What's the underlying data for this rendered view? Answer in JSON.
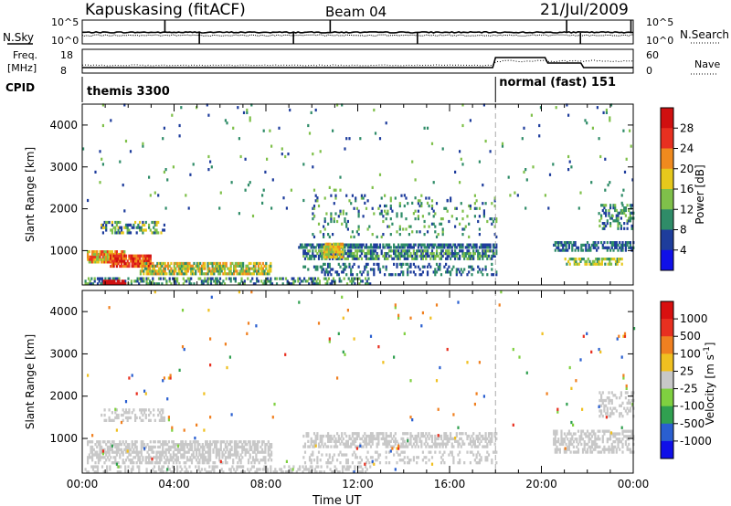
{
  "header": {
    "station": "Kapuskasing (fitACF)",
    "beam": "Beam 04",
    "date": "21/Jul/2009"
  },
  "top_panel": {
    "left_label": "N.Sky",
    "right_label": "N.Search",
    "yticks": [
      "10^5",
      "10^0"
    ]
  },
  "freq_panel": {
    "left_label_1": "Freq.",
    "left_label_2": "[MHz]",
    "right_label": "Nave",
    "left_ticks": [
      "18",
      "8"
    ],
    "right_ticks": [
      "60",
      "0"
    ]
  },
  "cpid": {
    "label": "CPID",
    "programs": [
      "themis 3300",
      "normal (fast) 151"
    ]
  },
  "chart_data": [
    {
      "type": "heatmap",
      "name": "power",
      "xlabel": "",
      "ylabel": "Slant Range [km]",
      "xlim": [
        0,
        24
      ],
      "ylim": [
        180,
        4500
      ],
      "yticks": [
        "1000",
        "2000",
        "3000",
        "4000"
      ],
      "colorbar": {
        "label": "Power [dB]",
        "ticks": [
          "4",
          "8",
          "12",
          "16",
          "20",
          "24",
          "28"
        ],
        "colors": [
          "#1010e8",
          "#1e3d9c",
          "#2f8c68",
          "#7fc04a",
          "#e6c81c",
          "#f08a1e",
          "#e83020",
          "#d01010"
        ]
      },
      "regions": [
        {
          "t0": 0.2,
          "t1": 1.8,
          "r0": 700,
          "r1": 950,
          "density": 0.9,
          "levels": [
            10,
            14,
            18,
            22
          ]
        },
        {
          "t0": 1.2,
          "t1": 3.0,
          "r0": 600,
          "r1": 900,
          "density": 0.9,
          "levels": [
            18,
            22,
            26
          ]
        },
        {
          "t0": 2.5,
          "t1": 8.2,
          "r0": 420,
          "r1": 700,
          "density": 0.75,
          "levels": [
            8,
            12,
            16,
            20
          ]
        },
        {
          "t0": 0.8,
          "t1": 3.6,
          "r0": 1400,
          "r1": 1700,
          "density": 0.45,
          "levels": [
            4,
            8,
            12,
            16
          ]
        },
        {
          "t0": 0.1,
          "t1": 12.5,
          "r0": 180,
          "r1": 330,
          "density": 0.45,
          "levels": [
            4,
            8,
            12
          ]
        },
        {
          "t0": 0.9,
          "t1": 1.9,
          "r0": 180,
          "r1": 300,
          "density": 0.9,
          "levels": [
            26,
            28
          ]
        },
        {
          "t0": 9.4,
          "t1": 18.0,
          "r0": 1050,
          "r1": 1150,
          "density": 0.75,
          "levels": [
            4,
            8
          ]
        },
        {
          "t0": 9.6,
          "t1": 18.0,
          "r0": 780,
          "r1": 980,
          "density": 0.65,
          "levels": [
            4,
            8,
            12
          ]
        },
        {
          "t0": 10.5,
          "t1": 11.3,
          "r0": 820,
          "r1": 1150,
          "density": 0.85,
          "levels": [
            12,
            16,
            20
          ]
        },
        {
          "t0": 9.6,
          "t1": 18.0,
          "r0": 400,
          "r1": 700,
          "density": 0.3,
          "levels": [
            4,
            8
          ]
        },
        {
          "t0": 10.0,
          "t1": 18.0,
          "r0": 1300,
          "r1": 2300,
          "density": 0.1,
          "levels": [
            4,
            8,
            12
          ]
        },
        {
          "t0": 20.5,
          "t1": 24.0,
          "r0": 980,
          "r1": 1200,
          "density": 0.5,
          "levels": [
            4,
            8
          ]
        },
        {
          "t0": 21.0,
          "t1": 23.5,
          "r0": 650,
          "r1": 820,
          "density": 0.65,
          "levels": [
            8,
            12,
            16
          ]
        },
        {
          "t0": 22.5,
          "t1": 24.0,
          "r0": 1500,
          "r1": 2100,
          "density": 0.3,
          "levels": [
            4,
            8,
            12
          ]
        },
        {
          "t0": 0.0,
          "t1": 24.0,
          "r0": 1800,
          "r1": 4500,
          "density": 0.012,
          "levels": [
            4,
            8,
            12
          ]
        }
      ]
    },
    {
      "type": "heatmap",
      "name": "velocity",
      "xlabel": "Time UT",
      "ylabel": "Slant Range [km]",
      "xlim": [
        0,
        24
      ],
      "ylim": [
        180,
        4500
      ],
      "yticks": [
        "1000",
        "2000",
        "3000",
        "4000"
      ],
      "xticks": [
        "00:00",
        "04:00",
        "08:00",
        "12:00",
        "16:00",
        "20:00",
        "00:00"
      ],
      "colorbar": {
        "label": "Velocity [m s^-1]",
        "ticks": [
          "1000",
          "500",
          "100",
          "25",
          "-25",
          "-100",
          "-500",
          "-1000"
        ],
        "colors": [
          "#1010e8",
          "#2a5fd0",
          "#30a050",
          "#7fd040",
          "#c8c8c8",
          "#f0c020",
          "#f08020",
          "#e83020",
          "#d81010"
        ]
      },
      "regions": [
        {
          "t0": 0.2,
          "t1": 8.2,
          "r0": 400,
          "r1": 950,
          "density": 0.55,
          "levels": [
            4
          ]
        },
        {
          "t0": 0.8,
          "t1": 3.6,
          "r0": 1400,
          "r1": 1700,
          "density": 0.35,
          "levels": [
            4
          ]
        },
        {
          "t0": 0.1,
          "t1": 12.5,
          "r0": 180,
          "r1": 330,
          "density": 0.35,
          "levels": [
            4
          ]
        },
        {
          "t0": 9.6,
          "t1": 18.0,
          "r0": 780,
          "r1": 1150,
          "density": 0.5,
          "levels": [
            4
          ]
        },
        {
          "t0": 9.6,
          "t1": 18.0,
          "r0": 400,
          "r1": 700,
          "density": 0.25,
          "levels": [
            4
          ]
        },
        {
          "t0": 20.5,
          "t1": 24.0,
          "r0": 650,
          "r1": 1200,
          "density": 0.45,
          "levels": [
            4
          ]
        },
        {
          "t0": 22.5,
          "t1": 24.0,
          "r0": 1500,
          "r1": 2100,
          "density": 0.3,
          "levels": [
            4
          ]
        },
        {
          "t0": 0.0,
          "t1": 24.0,
          "r0": 180,
          "r1": 4500,
          "density": 0.006,
          "levels": [
            1,
            2,
            3,
            5,
            6,
            7
          ]
        }
      ]
    }
  ],
  "cpid_change_hour": 18.0
}
